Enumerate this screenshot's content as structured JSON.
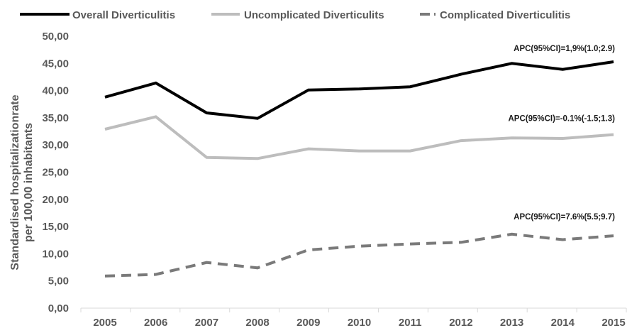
{
  "chart_data": {
    "type": "line",
    "title": "",
    "xlabel": "",
    "ylabel_lines": [
      "Standardised hospitalizationrate",
      "per 100,00 inhabitants"
    ],
    "ylim": [
      0,
      50
    ],
    "y_ticks": [
      "0,00",
      "5,00",
      "10,00",
      "15,00",
      "20,00",
      "25,00",
      "30,00",
      "35,00",
      "40,00",
      "45,00",
      "50,00"
    ],
    "grid": false,
    "legend_position": "top",
    "categories": [
      "2005",
      "2006",
      "2007",
      "2008",
      "2009",
      "2010",
      "2011",
      "2012",
      "2013",
      "2014",
      "2015"
    ],
    "series": [
      {
        "name": "Overall Diverticulitis",
        "color": "#000000",
        "style": "solid",
        "values": [
          38.8,
          41.4,
          35.9,
          34.9,
          40.1,
          40.3,
          40.7,
          43.0,
          45.0,
          43.9,
          45.3
        ],
        "annotation": "APC(95%CI)=1,9%(1.0;2.9)"
      },
      {
        "name": "Uncomplicated Diverticulits",
        "color": "#bdbdbd",
        "style": "solid",
        "values": [
          32.9,
          35.2,
          27.7,
          27.5,
          29.3,
          28.9,
          28.9,
          30.8,
          31.3,
          31.2,
          31.9
        ],
        "annotation": "APC(95%CI)=-0.1%(-1.5;1.3)"
      },
      {
        "name": "Complicated Diverticulitis",
        "color": "#7a7a7a",
        "style": "dashed",
        "values": [
          5.9,
          6.2,
          8.4,
          7.4,
          10.7,
          11.4,
          11.8,
          12.1,
          13.6,
          12.6,
          13.3
        ],
        "annotation": "APC(95%CI)=7.6%(5.5;9.7)"
      }
    ]
  }
}
